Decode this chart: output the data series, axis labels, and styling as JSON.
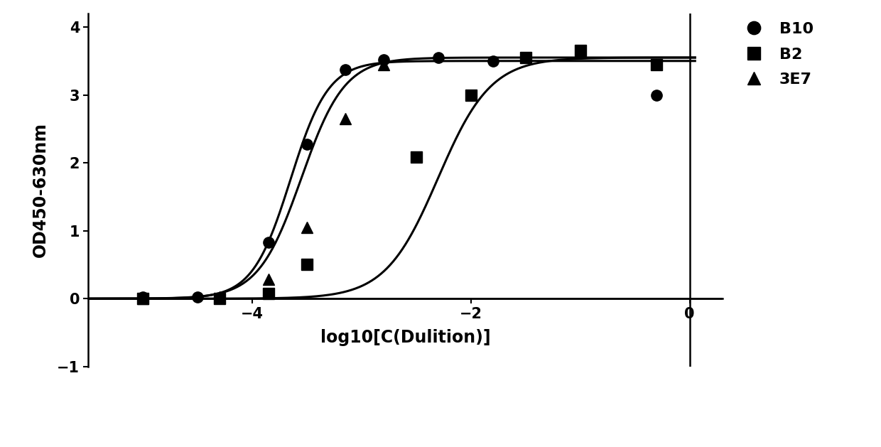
{
  "title": "",
  "xlabel": "log10[C(Dulition)]",
  "ylabel": "OD450-630nm",
  "xlim": [
    -5.5,
    0.3
  ],
  "ylim": [
    -1,
    4.2
  ],
  "yticks": [
    -1,
    0,
    1,
    2,
    3,
    4
  ],
  "xticks": [
    -4,
    -2,
    0
  ],
  "background_color": "#ffffff",
  "series": [
    {
      "label": "B10",
      "marker": "o",
      "color": "#000000",
      "x_data": [
        -5.0,
        -4.5,
        -3.85,
        -3.5,
        -3.15,
        -2.8,
        -2.3,
        -1.8,
        -0.3
      ],
      "y_data": [
        0.02,
        0.02,
        0.83,
        2.27,
        3.37,
        3.52,
        3.55,
        3.5,
        3.0
      ],
      "ec50": -3.55,
      "hill": 2.2,
      "bottom": 0.0,
      "top": 3.55
    },
    {
      "label": "B2",
      "marker": "s",
      "color": "#000000",
      "x_data": [
        -5.0,
        -4.3,
        -3.85,
        -3.5,
        -2.5,
        -2.0,
        -1.5,
        -1.0,
        -0.3
      ],
      "y_data": [
        0.0,
        0.0,
        0.08,
        0.5,
        2.08,
        3.0,
        3.55,
        3.65,
        3.45
      ],
      "ec50": -2.3,
      "hill": 1.8,
      "bottom": 0.0,
      "top": 3.55
    },
    {
      "label": "3E7",
      "marker": "^",
      "color": "#000000",
      "x_data": [
        -5.0,
        -4.3,
        -3.85,
        -3.5,
        -3.15,
        -2.8
      ],
      "y_data": [
        0.0,
        0.02,
        0.28,
        1.05,
        2.65,
        3.45
      ],
      "ec50": -3.65,
      "hill": 2.5,
      "bottom": 0.0,
      "top": 3.5
    }
  ],
  "vline_x": 0.0,
  "hline_y": 0.0,
  "marker_size": 11,
  "line_width": 2.2,
  "font_size_label": 17,
  "font_size_tick": 15,
  "font_size_legend": 16
}
